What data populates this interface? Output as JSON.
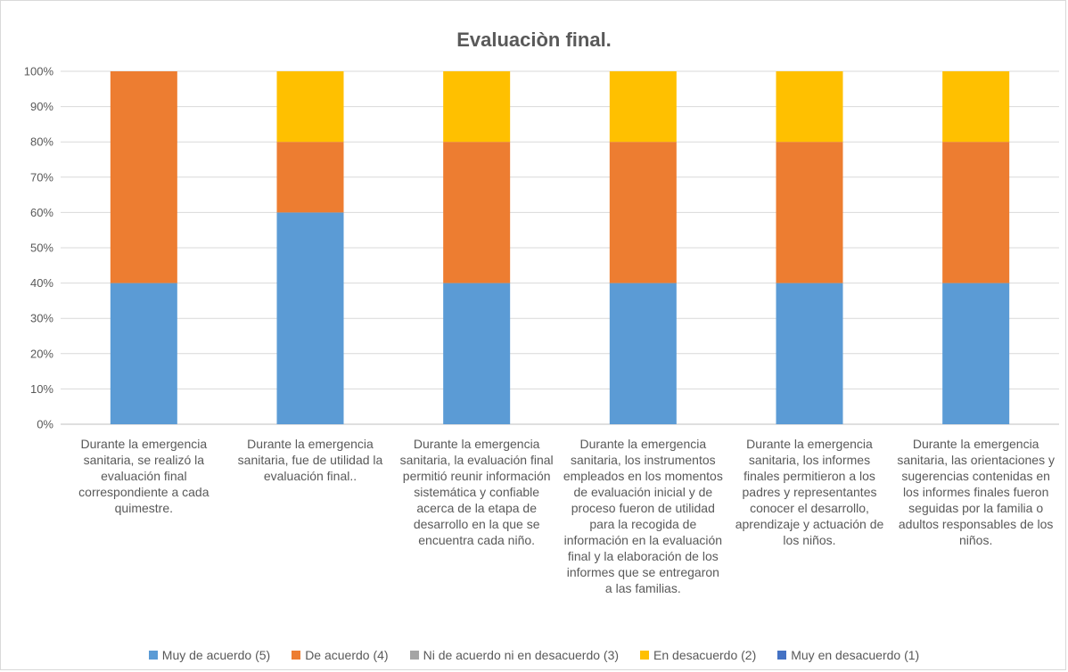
{
  "chart_data": {
    "type": "bar",
    "stacked": true,
    "percent": true,
    "title": "Evaluaciòn final.",
    "ylim": [
      0,
      100
    ],
    "yticks": [
      "0%",
      "10%",
      "20%",
      "30%",
      "40%",
      "50%",
      "60%",
      "70%",
      "80%",
      "90%",
      "100%"
    ],
    "grid": true,
    "legend_position": "bottom",
    "categories": [
      "Durante la emergencia sanitaria, se realizó la evaluación final correspondiente a cada quimestre.",
      "Durante la emergencia sanitaria, fue de utilidad la evaluación final..",
      "Durante la emergencia sanitaria, la evaluación final permitió reunir información sistemática y confiable acerca de la etapa de desarrollo en la que se encuentra cada niño.",
      "Durante la emergencia sanitaria, los instrumentos empleados en los momentos de evaluación inicial y de proceso fueron de utilidad para la recogida de información en la evaluación final y la elaboración de los informes que se entregaron a las familias.",
      "Durante la emergencia sanitaria, los informes finales permitieron a los padres y representantes conocer el desarrollo, aprendizaje y actuación de los niños.",
      "Durante la emergencia sanitaria, las orientaciones y sugerencias contenidas en los informes finales fueron seguidas por la familia o adultos responsables de los niños."
    ],
    "series": [
      {
        "name": "Muy de acuerdo (5)",
        "color": "#5b9bd5",
        "values": [
          40,
          60,
          40,
          40,
          40,
          40
        ]
      },
      {
        "name": "De acuerdo (4)",
        "color": "#ed7d31",
        "values": [
          60,
          20,
          40,
          40,
          40,
          40
        ]
      },
      {
        "name": "Ni de acuerdo ni en desacuerdo (3)",
        "color": "#a5a5a5",
        "values": [
          0,
          0,
          0,
          0,
          0,
          0
        ]
      },
      {
        "name": "En desacuerdo (2)",
        "color": "#ffc000",
        "values": [
          0,
          20,
          20,
          20,
          20,
          20
        ]
      },
      {
        "name": "Muy en desacuerdo (1)",
        "color": "#4472c4",
        "values": [
          0,
          0,
          0,
          0,
          0,
          0
        ]
      }
    ]
  }
}
